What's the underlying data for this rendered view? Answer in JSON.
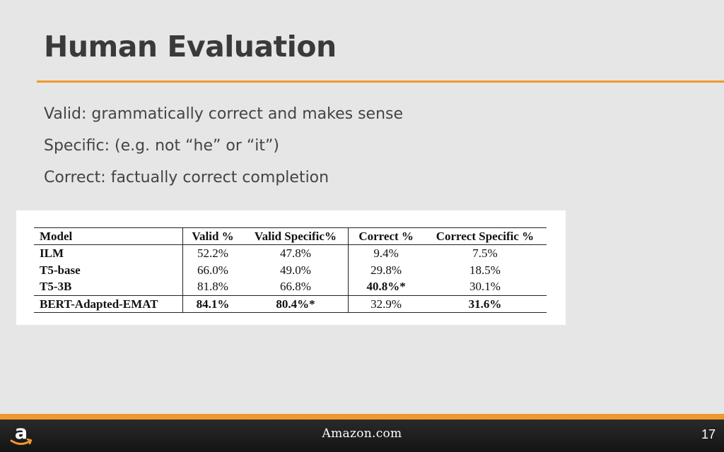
{
  "slide": {
    "title": "Human Evaluation",
    "bullets": [
      "Valid: grammatically correct and makes sense",
      "Specific: (e.g. not “he” or “it”)",
      "Correct: factually correct completion"
    ]
  },
  "table": {
    "headers": [
      "Model",
      "Valid %",
      "Valid Specific%",
      "Correct %",
      "Correct Specific %"
    ],
    "rows": [
      [
        "ILM",
        "52.2%",
        "47.8%",
        "9.4%",
        "7.5%"
      ],
      [
        "T5-base",
        "66.0%",
        "49.0%",
        "29.8%",
        "18.5%"
      ],
      [
        "T5-3B",
        "81.8%",
        "66.8%",
        "40.8%*",
        "30.1%"
      ],
      [
        "BERT-Adapted-EMAT",
        "84.1%",
        "80.4%*",
        "32.9%",
        "31.6%"
      ]
    ]
  },
  "footer": {
    "brand": "Amazon.com",
    "page_number": "17",
    "logo_icon": "amazon-smile-logo-icon"
  },
  "colors": {
    "accent": "#f0982e",
    "background": "#e6e6e6",
    "footer": "#1e1e1e",
    "title_text": "#3a3a3a"
  }
}
